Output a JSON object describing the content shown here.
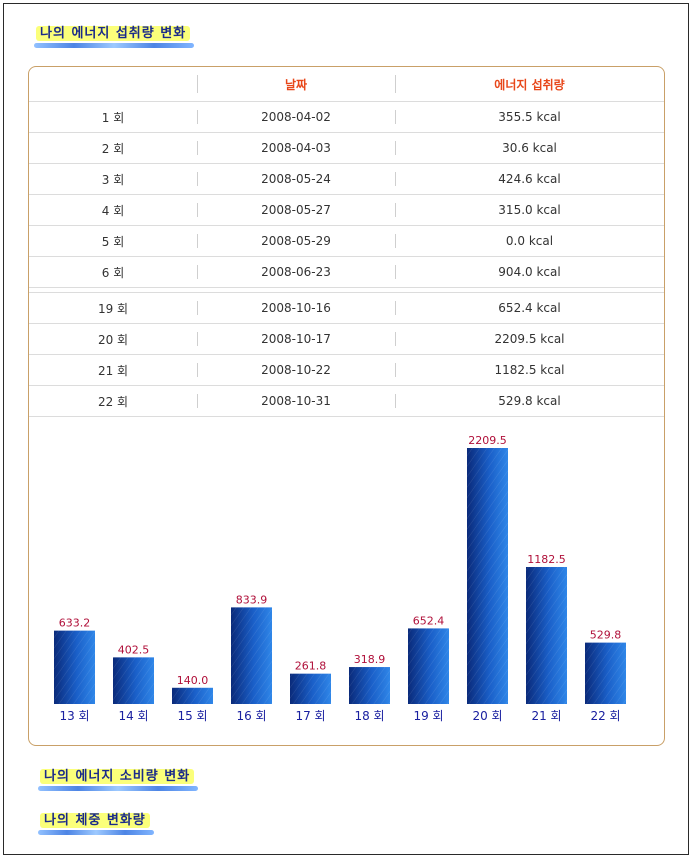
{
  "headings": {
    "intake": "나의 에너지 섭취량 변화",
    "consumption": "나의 에너지 소비량 변화",
    "weight": "나의 체중 변화량"
  },
  "table": {
    "headers": [
      "",
      "날짜",
      "에너지 섭취량"
    ],
    "rows_top": [
      [
        "1 회",
        "2008-04-02",
        "355.5 kcal"
      ],
      [
        "2 회",
        "2008-04-03",
        "30.6 kcal"
      ],
      [
        "3 회",
        "2008-05-24",
        "424.6 kcal"
      ],
      [
        "4 회",
        "2008-05-27",
        "315.0 kcal"
      ],
      [
        "5 회",
        "2008-05-29",
        "0.0 kcal"
      ],
      [
        "6 회",
        "2008-06-23",
        "904.0 kcal"
      ]
    ],
    "rows_bottom": [
      [
        "19 회",
        "2008-10-16",
        "652.4 kcal"
      ],
      [
        "20 회",
        "2008-10-17",
        "2209.5 kcal"
      ],
      [
        "21 회",
        "2008-10-22",
        "1182.5 kcal"
      ],
      [
        "22 회",
        "2008-10-31",
        "529.8 kcal"
      ]
    ]
  },
  "chart_data": {
    "type": "bar",
    "categories": [
      "13 회",
      "14 회",
      "15 회",
      "16 회",
      "17 회",
      "18 회",
      "19 회",
      "20 회",
      "21 회",
      "22 회"
    ],
    "values": [
      633.2,
      402.5,
      140.0,
      833.9,
      261.8,
      318.9,
      652.4,
      2209.5,
      1182.5,
      529.8
    ],
    "value_labels": [
      "633.2",
      "402.5",
      "140.0",
      "833.9",
      "261.8",
      "318.9",
      "652.4",
      "2209.5",
      "1182.5",
      "529.8"
    ],
    "title": "",
    "xlabel": "",
    "ylabel": "",
    "ylim": [
      0,
      2209.5
    ],
    "grid": false,
    "colors": {
      "bar_dark": "#0a2a7a",
      "bar_mid": "#1a5fc8",
      "bar_light": "#2f86e8",
      "value_label": "#b0103a",
      "category_label": "#1a20a0"
    }
  }
}
